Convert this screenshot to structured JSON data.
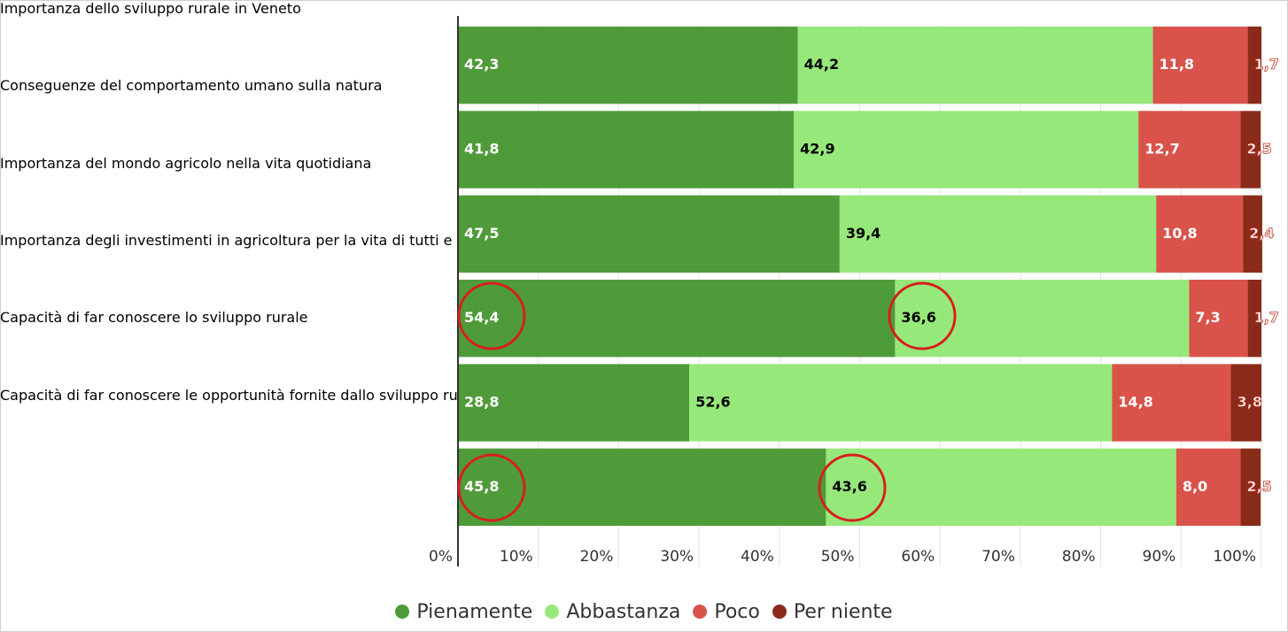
{
  "chart_data": {
    "type": "stacked_barh",
    "categories": [
      "Importanza dello sviluppo rurale in Veneto",
      "Conseguenze del comportamento umano sulla natura",
      "Importanza del mondo agricolo nella vita quotidiana",
      "Importanza degli investimenti in agricoltura per la vita di tutti e i prodotti della terra",
      "Capacità di far conoscere lo sviluppo rurale",
      "Capacità di far conoscere le opportunità fornite dallo sviluppo rurale per l'economia e le imprese"
    ],
    "series": [
      {
        "name": "Pienamente",
        "color": "#4f9b3a",
        "values": [
          42.3,
          41.8,
          47.5,
          54.4,
          28.8,
          45.8
        ],
        "value_labels": [
          "42,3",
          "41,8",
          "47,5",
          "54,4",
          "28,8",
          "45,8"
        ]
      },
      {
        "name": "Abbastanza",
        "color": "#97e87a",
        "values": [
          44.2,
          42.9,
          39.4,
          36.6,
          52.6,
          43.6
        ],
        "value_labels": [
          "44,2",
          "42,9",
          "39,4",
          "36,6",
          "52,6",
          "43,6"
        ]
      },
      {
        "name": "Poco",
        "color": "#d9534b",
        "values": [
          11.8,
          12.7,
          10.8,
          7.3,
          14.8,
          8.0
        ],
        "value_labels": [
          "11,8",
          "12,7",
          "10,8",
          "7,3",
          "14,8",
          "8,0"
        ]
      },
      {
        "name": "Per niente",
        "color": "#8a2b1a",
        "values": [
          1.7,
          2.5,
          2.4,
          1.7,
          3.8,
          2.5
        ],
        "value_labels": [
          "1,7",
          "2,5",
          "2,4",
          "1,7",
          "3,8",
          "2,5"
        ]
      }
    ],
    "xlim": [
      0,
      100
    ],
    "xticks": [
      {
        "value": 0,
        "label": "0%"
      },
      {
        "value": 10,
        "label": "10%"
      },
      {
        "value": 20,
        "label": "20%"
      },
      {
        "value": 30,
        "label": "30%"
      },
      {
        "value": 40,
        "label": "40%"
      },
      {
        "value": 50,
        "label": "50%"
      },
      {
        "value": 60,
        "label": "60%"
      },
      {
        "value": 70,
        "label": "70%"
      },
      {
        "value": 80,
        "label": "80%"
      },
      {
        "value": 90,
        "label": "90%"
      },
      {
        "value": 100,
        "label": "100%"
      }
    ],
    "grid": true,
    "legend": "bottom"
  }
}
